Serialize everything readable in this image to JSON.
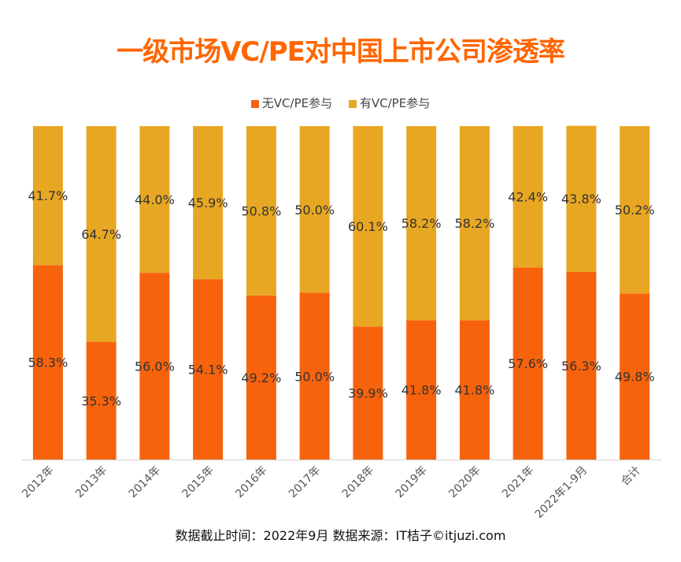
{
  "title": "一级市场VC/PE对中国上市公司渗透率",
  "footer": "数据截止时间：2022年9月 数据来源：IT桔子©itjuzi.com",
  "chart_data": {
    "type": "bar",
    "stacked": true,
    "categories": [
      "2012年",
      "2013年",
      "2014年",
      "2015年",
      "2016年",
      "2017年",
      "2018年",
      "2019年",
      "2020年",
      "2021年",
      "2022年1-9月",
      "合计"
    ],
    "series": [
      {
        "name": "无VC/PE参与",
        "color": "#f7630c",
        "values": [
          58.3,
          35.3,
          56.0,
          54.1,
          49.2,
          50.0,
          39.9,
          41.8,
          41.8,
          57.6,
          56.3,
          49.8
        ],
        "labels": [
          "58.3%",
          "35.3%",
          "56.0%",
          "54.1%",
          "49.2%",
          "50.0%",
          "39.9%",
          "41.8%",
          "41.8%",
          "57.6%",
          "56.3%",
          "49.8%"
        ]
      },
      {
        "name": "有VC/PE参与",
        "color": "#e8a722",
        "values": [
          41.7,
          64.7,
          44.0,
          45.9,
          50.8,
          50.0,
          60.1,
          58.2,
          58.2,
          42.4,
          43.8,
          50.2
        ],
        "labels": [
          "41.7%",
          "64.7%",
          "44.0%",
          "45.9%",
          "50.8%",
          "50.0%",
          "60.1%",
          "58.2%",
          "58.2%",
          "42.4%",
          "43.8%",
          "50.2%"
        ]
      }
    ],
    "ylim": [
      0,
      100
    ],
    "unit": "%",
    "grid": false,
    "legend_position": "top-center"
  }
}
